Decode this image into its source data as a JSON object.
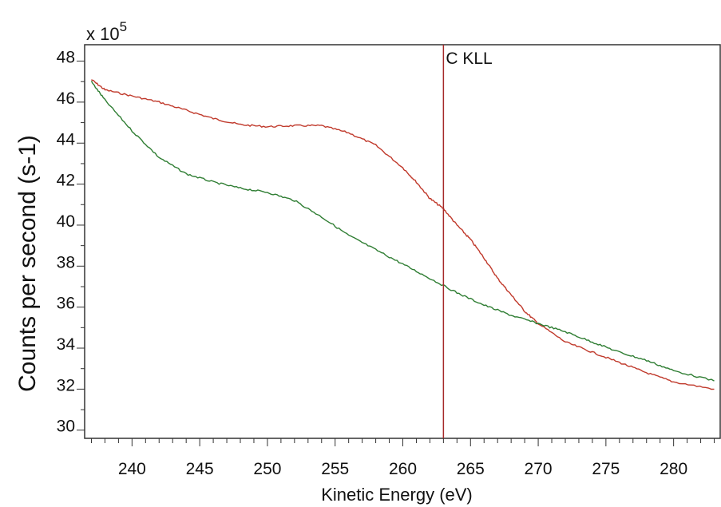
{
  "chart_data": {
    "type": "line",
    "multiplier": {
      "base": "x 10",
      "exponent": "5"
    },
    "xlabel": "Kinetic Energy (eV)",
    "ylabel": "Counts per second (s-1)",
    "xlim": [
      236.5,
      283.5
    ],
    "ylim": [
      29.6,
      48.8
    ],
    "x_ticks": [
      240,
      245,
      250,
      255,
      260,
      265,
      270,
      275,
      280
    ],
    "y_ticks": [
      30,
      32,
      34,
      36,
      38,
      40,
      42,
      44,
      46,
      48
    ],
    "grid": false,
    "colors": {
      "red_series": "#c0392b",
      "green_series": "#2e7d32",
      "marker": "#a52a2a",
      "axis": "#333333"
    },
    "annotation": {
      "label": "C KLL",
      "x": 263
    },
    "series": [
      {
        "color": "#c0392b",
        "x": [
          237.0,
          238.0,
          240.0,
          242.0,
          244.0,
          246.0,
          248.0,
          250.0,
          252.0,
          254.0,
          256.0,
          258.0,
          260.0,
          261.0,
          262.0,
          263.0,
          264.0,
          265.0,
          266.0,
          267.0,
          268.0,
          269.0,
          270.0,
          272.0,
          274.0,
          276.0,
          278.0,
          280.0,
          283.0
        ],
        "y": [
          47.1,
          46.6,
          46.3,
          46.0,
          45.6,
          45.2,
          44.9,
          44.8,
          44.85,
          44.85,
          44.5,
          43.9,
          42.8,
          42.1,
          41.3,
          40.8,
          40.0,
          39.3,
          38.4,
          37.4,
          36.6,
          35.8,
          35.2,
          34.3,
          33.8,
          33.3,
          32.8,
          32.35,
          32.0
        ]
      },
      {
        "color": "#2e7d32",
        "x": [
          237.0,
          238.0,
          240.0,
          242.0,
          244.0,
          246.0,
          248.0,
          250.0,
          252.0,
          254.0,
          256.0,
          258.0,
          260.0,
          262.0,
          264.0,
          266.0,
          268.0,
          270.0,
          272.0,
          274.0,
          276.0,
          278.0,
          280.0,
          283.0
        ],
        "y": [
          47.0,
          46.1,
          44.6,
          43.3,
          42.5,
          42.1,
          41.8,
          41.6,
          41.2,
          40.4,
          39.5,
          38.8,
          38.1,
          37.4,
          36.7,
          36.1,
          35.6,
          35.2,
          34.8,
          34.3,
          33.8,
          33.4,
          32.9,
          32.4
        ]
      }
    ]
  }
}
